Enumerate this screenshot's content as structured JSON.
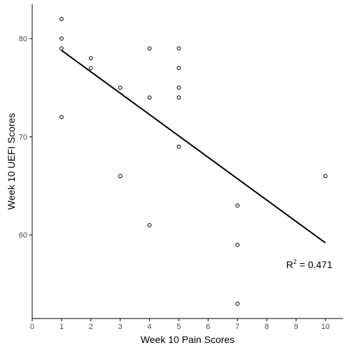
{
  "chart_data": {
    "type": "scatter",
    "xlabel": "Week 10 Pain Scores",
    "ylabel": "Week 10 UEFI Scores",
    "xlim": [
      0,
      10.6
    ],
    "ylim": [
      51.5,
      83.5
    ],
    "xticks": [
      0,
      1,
      2,
      3,
      4,
      5,
      6,
      7,
      8,
      9,
      10
    ],
    "yticks": [
      60,
      70,
      80
    ],
    "grid": false,
    "legend": "none",
    "points": [
      {
        "x": 1,
        "y": 82
      },
      {
        "x": 1,
        "y": 80
      },
      {
        "x": 1,
        "y": 79
      },
      {
        "x": 1,
        "y": 72
      },
      {
        "x": 2,
        "y": 78
      },
      {
        "x": 2,
        "y": 77
      },
      {
        "x": 3,
        "y": 75
      },
      {
        "x": 3,
        "y": 66
      },
      {
        "x": 4,
        "y": 79
      },
      {
        "x": 4,
        "y": 74
      },
      {
        "x": 4,
        "y": 61
      },
      {
        "x": 5,
        "y": 79
      },
      {
        "x": 5,
        "y": 77
      },
      {
        "x": 5,
        "y": 75
      },
      {
        "x": 5,
        "y": 74
      },
      {
        "x": 5,
        "y": 69
      },
      {
        "x": 7,
        "y": 63
      },
      {
        "x": 7,
        "y": 59
      },
      {
        "x": 7,
        "y": 53
      },
      {
        "x": 10,
        "y": 66
      }
    ],
    "trendline": {
      "x": [
        1,
        10
      ],
      "y": [
        78.8,
        59.2
      ]
    },
    "annotation": {
      "prefix": "R",
      "superscript": "2",
      "text": " = 0.471",
      "x": 9.45,
      "y": 57
    }
  }
}
